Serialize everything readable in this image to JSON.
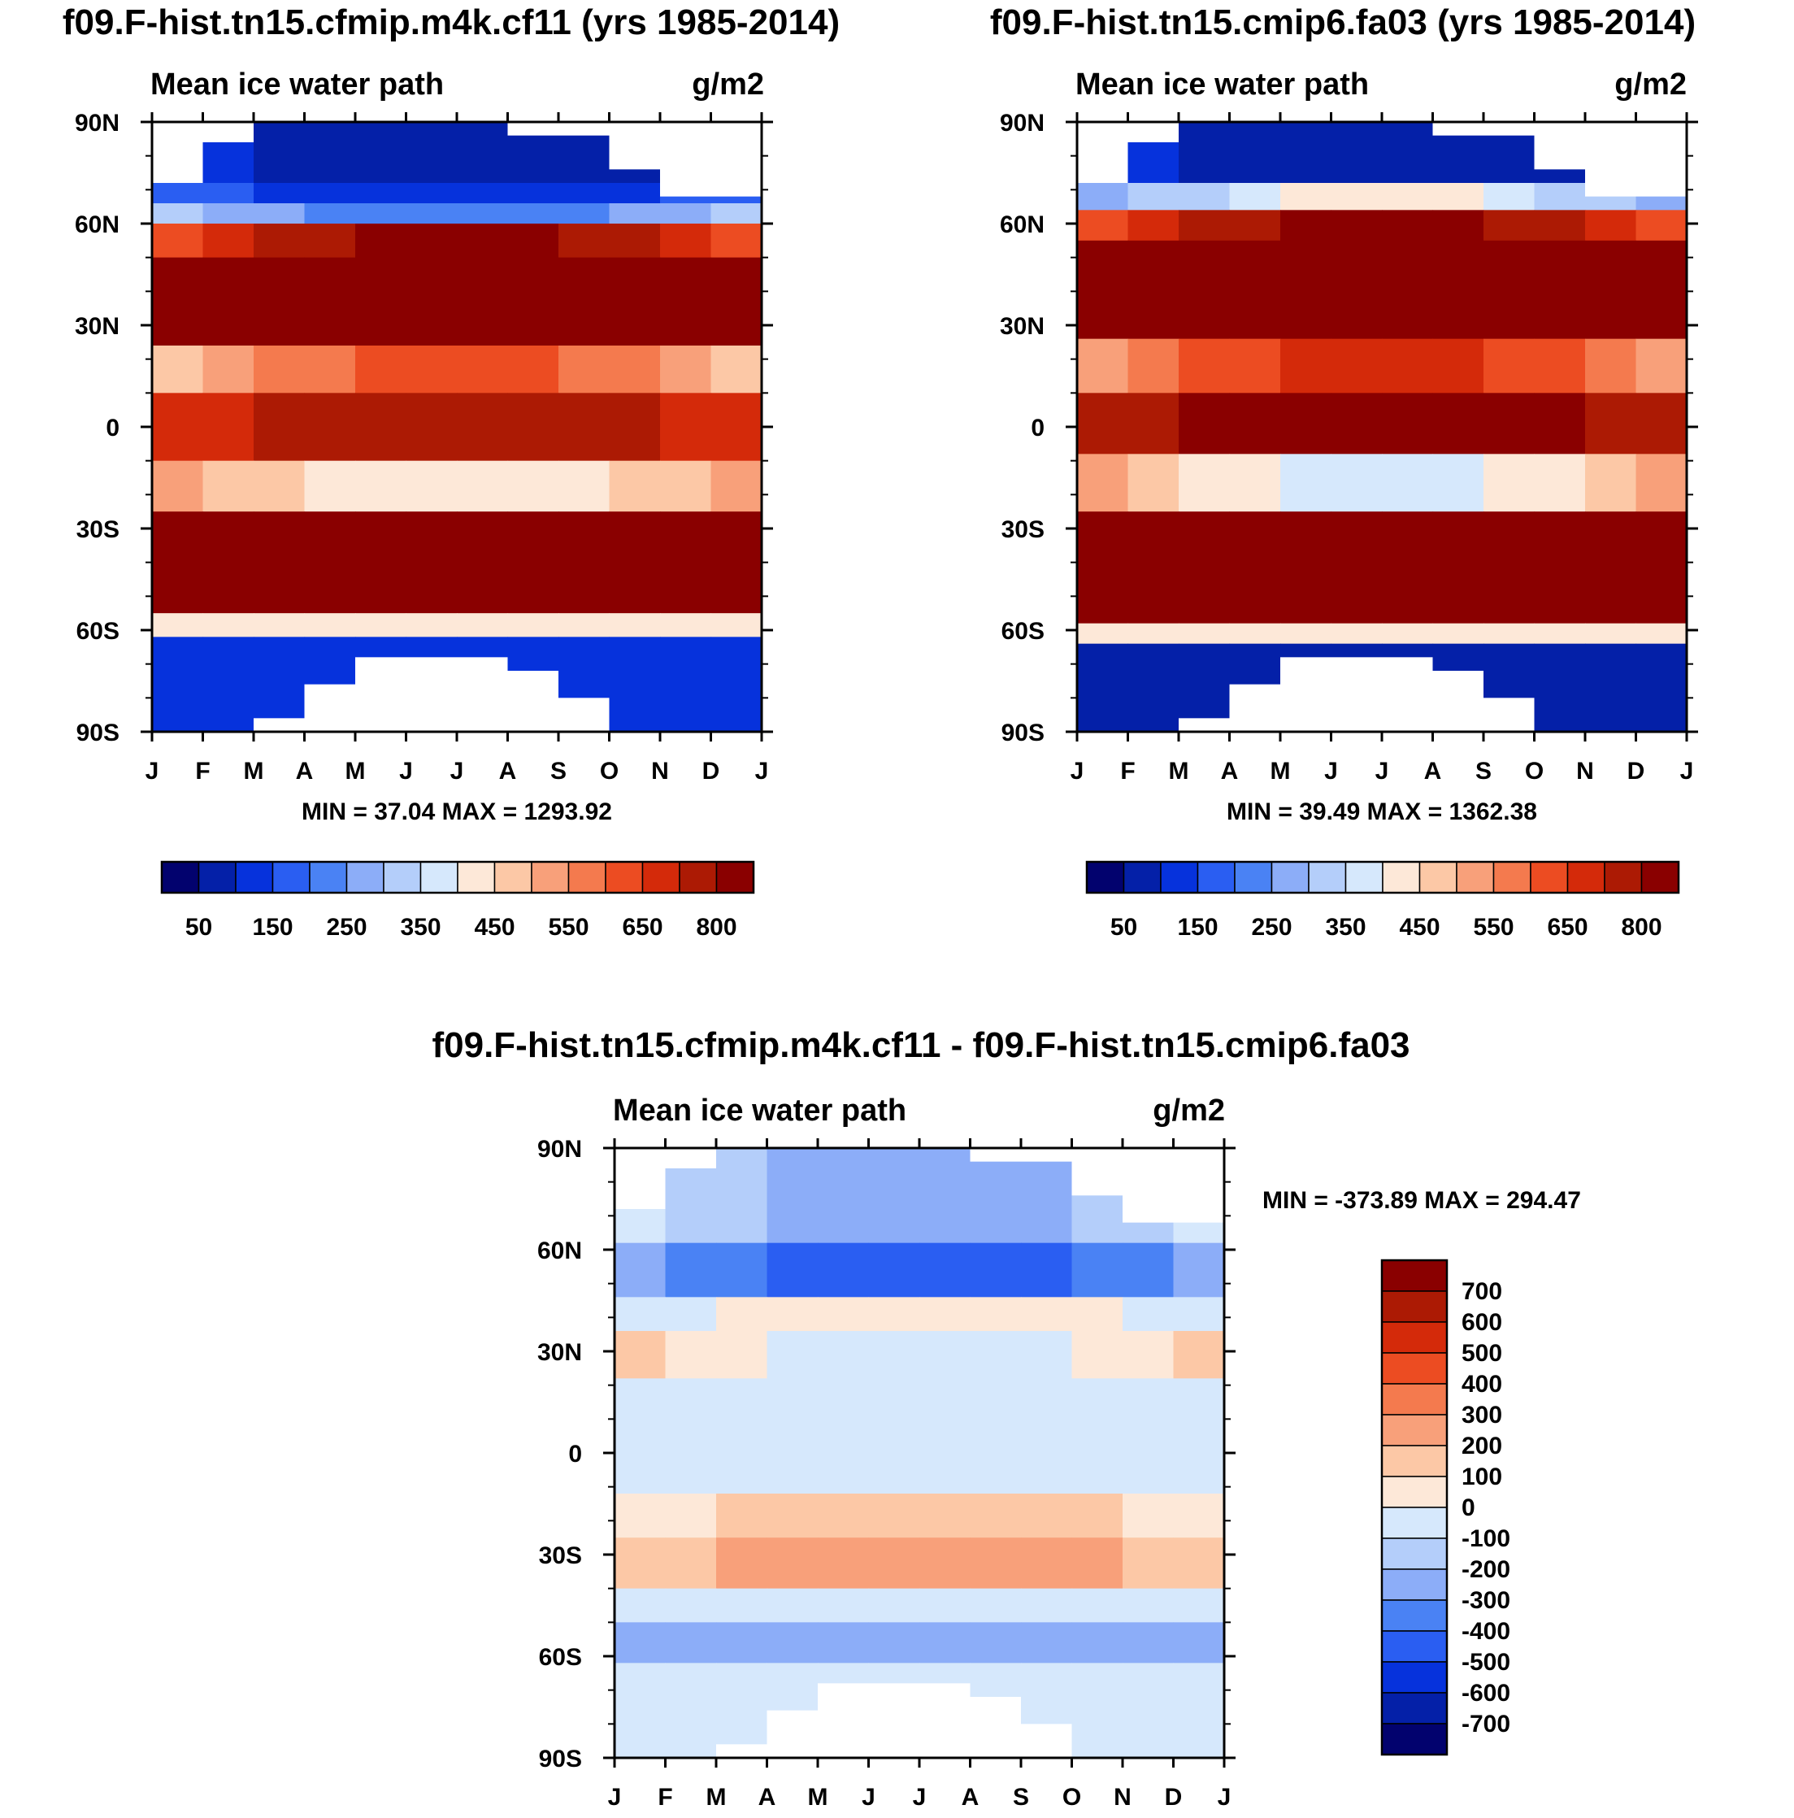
{
  "palette": [
    "#02026e",
    "#0420a8",
    "#0632dc",
    "#2a5ef2",
    "#4a82f4",
    "#8cadf8",
    "#b4cefa",
    "#d6e8fc",
    "#fde8d8",
    "#fcc8a6",
    "#f8a07a",
    "#f47a4e",
    "#ec4c22",
    "#d42a0a",
    "#ac1a04",
    "#8a0000"
  ],
  "month_labels": [
    "J",
    "F",
    "M",
    "A",
    "M",
    "J",
    "J",
    "A",
    "S",
    "O",
    "N",
    "D",
    "J"
  ],
  "lat_labels": [
    "90N",
    "60N",
    "30N",
    "0",
    "30S",
    "60S",
    "90S"
  ],
  "chart_data": [
    {
      "type": "heatmap",
      "title": "f09.F-hist.tn15.cfmip.m4k.cf11 (yrs 1985-2014)",
      "left_label": "Mean ice water path",
      "right_label": "g/m2",
      "stats": "MIN =  37.04 MAX = 1293.92",
      "x": [
        "J",
        "F",
        "M",
        "A",
        "M",
        "J",
        "J",
        "A",
        "S",
        "O",
        "N",
        "D",
        "J"
      ],
      "y": [
        "90N",
        "60N",
        "30N",
        "0",
        "30S",
        "60S",
        "90S"
      ],
      "colorbar": {
        "orientation": "horizontal",
        "levels": [
          50,
          100,
          150,
          200,
          250,
          300,
          350,
          400,
          450,
          500,
          550,
          600,
          650,
          700,
          800
        ],
        "labels": [
          "50",
          "150",
          "250",
          "350",
          "450",
          "550",
          "650",
          "800"
        ]
      },
      "bands": [
        {
          "lat": [
            90,
            72
          ],
          "level": 1,
          "base": 2,
          "amp": -1
        },
        {
          "lat": [
            72,
            66
          ],
          "level": 3,
          "base": 3,
          "amp": -1
        },
        {
          "lat": [
            66,
            60
          ],
          "level": 7,
          "base": 6,
          "amp": -2
        },
        {
          "lat": [
            60,
            50
          ],
          "level": 12,
          "base": 12,
          "amp": 3
        },
        {
          "lat": [
            50,
            24
          ],
          "level": 15,
          "base": 15,
          "amp": 0
        },
        {
          "lat": [
            24,
            10
          ],
          "level": 9,
          "base": 9,
          "amp": 3
        },
        {
          "lat": [
            10,
            -10
          ],
          "level": 13,
          "base": 13,
          "amp": 1
        },
        {
          "lat": [
            -10,
            -25
          ],
          "level": 10,
          "base": 10,
          "amp": -2
        },
        {
          "lat": [
            -25,
            -55
          ],
          "level": 15,
          "base": 15,
          "amp": 0
        },
        {
          "lat": [
            -55,
            -62
          ],
          "level": 8,
          "base": 8,
          "amp": 0
        },
        {
          "lat": [
            -62,
            -90
          ],
          "level": 2,
          "base": 2,
          "amp": 0
        }
      ]
    },
    {
      "type": "heatmap",
      "title": "f09.F-hist.tn15.cmip6.fa03 (yrs 1985-2014)",
      "left_label": "Mean ice water path",
      "right_label": "g/m2",
      "stats": "MIN =  39.49 MAX = 1362.38",
      "x": [
        "J",
        "F",
        "M",
        "A",
        "M",
        "J",
        "J",
        "A",
        "S",
        "O",
        "N",
        "D",
        "J"
      ],
      "y": [
        "90N",
        "60N",
        "30N",
        "0",
        "30S",
        "60S",
        "90S"
      ],
      "colorbar": {
        "orientation": "horizontal",
        "levels": [
          50,
          100,
          150,
          200,
          250,
          300,
          350,
          400,
          450,
          500,
          550,
          600,
          650,
          700,
          800
        ],
        "labels": [
          "50",
          "150",
          "250",
          "350",
          "450",
          "550",
          "650",
          "800"
        ]
      },
      "bands": [
        {
          "lat": [
            90,
            72
          ],
          "level": 1,
          "base": 2,
          "amp": -1
        },
        {
          "lat": [
            72,
            64
          ],
          "level": 5,
          "base": 4,
          "amp": 4
        },
        {
          "lat": [
            64,
            55
          ],
          "level": 12,
          "base": 12,
          "amp": 3
        },
        {
          "lat": [
            55,
            26
          ],
          "level": 15,
          "base": 15,
          "amp": 0
        },
        {
          "lat": [
            26,
            10
          ],
          "level": 11,
          "base": 10,
          "amp": 3
        },
        {
          "lat": [
            10,
            -8
          ],
          "level": 14,
          "base": 14,
          "amp": 1
        },
        {
          "lat": [
            -8,
            -25
          ],
          "level": 10,
          "base": 10,
          "amp": -3
        },
        {
          "lat": [
            -25,
            -58
          ],
          "level": 15,
          "base": 15,
          "amp": 0
        },
        {
          "lat": [
            -58,
            -64
          ],
          "level": 8,
          "base": 8,
          "amp": 0
        },
        {
          "lat": [
            -64,
            -90
          ],
          "level": 1,
          "base": 1,
          "amp": 0
        }
      ]
    },
    {
      "type": "heatmap",
      "title": "f09.F-hist.tn15.cfmip.m4k.cf11 - f09.F-hist.tn15.cmip6.fa03",
      "left_label": "Mean ice water path",
      "right_label": "g/m2",
      "stats": "MIN = -373.89 MAX = 294.47",
      "x": [
        "J",
        "F",
        "M",
        "A",
        "M",
        "J",
        "J",
        "A",
        "S",
        "O",
        "N",
        "D",
        "J"
      ],
      "y": [
        "90N",
        "60N",
        "30N",
        "0",
        "30S",
        "60S",
        "90S"
      ],
      "colorbar": {
        "orientation": "vertical",
        "levels": [
          700,
          600,
          500,
          400,
          300,
          200,
          100,
          0,
          -100,
          -200,
          -300,
          -400,
          -500,
          -600,
          -700
        ],
        "labels": [
          "700",
          "600",
          "500",
          "400",
          "300",
          "200",
          "100",
          "0",
          "-100",
          "-200",
          "-300",
          "-400",
          "-500",
          "-600",
          "-700"
        ]
      },
      "bands": [
        {
          "lat": [
            90,
            62
          ],
          "level": 7,
          "base": 7,
          "amp": -2
        },
        {
          "lat": [
            62,
            46
          ],
          "level": 5,
          "base": 5,
          "amp": -2
        },
        {
          "lat": [
            46,
            36
          ],
          "level": 7,
          "base": 7,
          "amp": 1
        },
        {
          "lat": [
            36,
            22
          ],
          "level": 9,
          "base": 9,
          "amp": -2
        },
        {
          "lat": [
            22,
            -12
          ],
          "level": 7,
          "base": 7,
          "amp": 0
        },
        {
          "lat": [
            -12,
            -25
          ],
          "level": 8,
          "base": 8,
          "amp": 1
        },
        {
          "lat": [
            -25,
            -40
          ],
          "level": 9,
          "base": 9,
          "amp": 1
        },
        {
          "lat": [
            -40,
            -50
          ],
          "level": 7,
          "base": 7,
          "amp": 0
        },
        {
          "lat": [
            -50,
            -62
          ],
          "level": 5,
          "base": 5,
          "amp": 0
        },
        {
          "lat": [
            -62,
            -90
          ],
          "level": 7,
          "base": 7,
          "amp": 0
        }
      ]
    }
  ]
}
